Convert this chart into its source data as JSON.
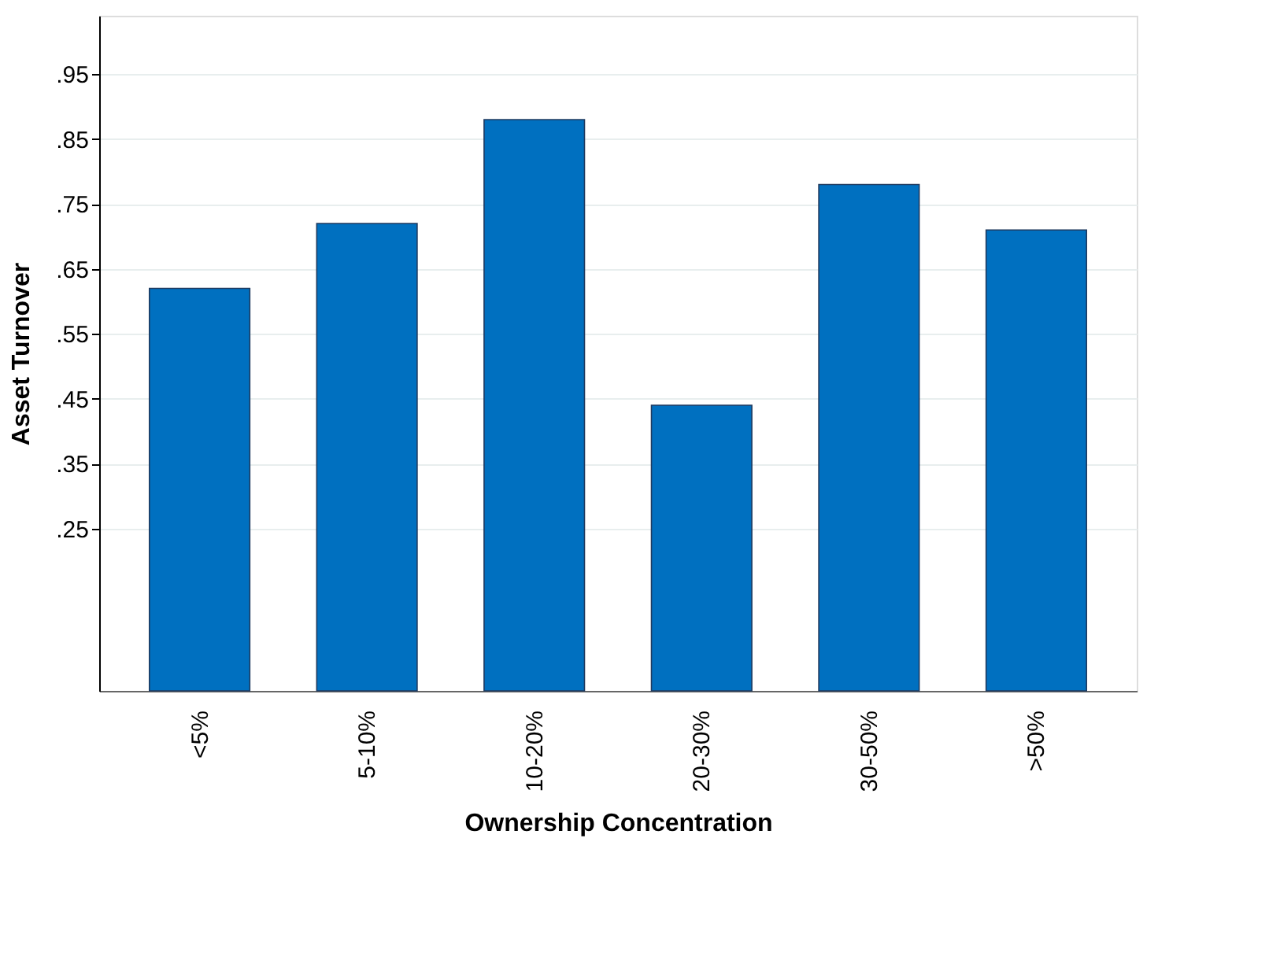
{
  "chart_data": {
    "type": "bar",
    "xlabel": "Ownership Concentration",
    "ylabel": "Asset Turnover",
    "categories": [
      "<5%",
      "5-10%",
      "10-20%",
      "20-30%",
      "30-50%",
      ">50%"
    ],
    "values": [
      0.62,
      0.72,
      0.88,
      0.44,
      0.78,
      0.71
    ],
    "color": "#0070c0",
    "ylim": [
      0,
      1.04
    ],
    "yticks": [
      {
        "value": 0.25,
        "label": ".25"
      },
      {
        "value": 0.35,
        "label": ".35"
      },
      {
        "value": 0.45,
        "label": ".45"
      },
      {
        "value": 0.55,
        "label": ".55"
      },
      {
        "value": 0.65,
        "label": ".65"
      },
      {
        "value": 0.75,
        "label": ".75"
      },
      {
        "value": 0.85,
        "label": ".85"
      },
      {
        "value": 0.95,
        "label": ".95"
      }
    ],
    "grid": "y"
  }
}
